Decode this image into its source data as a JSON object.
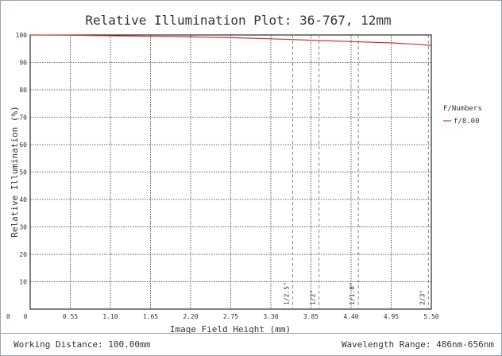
{
  "chart_data": {
    "type": "line",
    "title": "Relative Illumination Plot: 36-767, 12mm",
    "xlabel": "Image Field Height (mm)",
    "ylabel": "Relative Illumination (%)",
    "xlim": [
      0,
      5.5
    ],
    "ylim": [
      0,
      100
    ],
    "x_ticks": [
      "0",
      "0.55",
      "1.10",
      "1.65",
      "2.20",
      "2.75",
      "3.30",
      "3.85",
      "4.40",
      "4.95",
      "5.50"
    ],
    "y_ticks": [
      "0",
      "10",
      "20",
      "30",
      "40",
      "50",
      "60",
      "70",
      "80",
      "90",
      "100"
    ],
    "grid": true,
    "legend": {
      "title": "F/Numbers",
      "placement": "right",
      "entries": [
        "f/8.00"
      ]
    },
    "series": [
      {
        "name": "f/8.00",
        "color": "#d32f2f",
        "x": [
          0,
          0.55,
          1.1,
          1.65,
          2.2,
          2.75,
          3.3,
          3.85,
          4.4,
          4.95,
          5.3,
          5.5
        ],
        "y": [
          100,
          99.9,
          99.7,
          99.5,
          99.3,
          99.0,
          98.6,
          98.1,
          97.6,
          97.1,
          96.6,
          96.2
        ]
      }
    ],
    "annotations": [
      {
        "x": 3.6,
        "label": "1/2.5\""
      },
      {
        "x": 3.96,
        "label": "1/2\""
      },
      {
        "x": 4.5,
        "label": "1/1.8\""
      },
      {
        "x": 5.46,
        "label": "2/3\""
      }
    ]
  },
  "footer": {
    "working_distance": "Working Distance: 100.00mm",
    "wavelength_range": "Wavelength Range: 486nm-656nm"
  }
}
